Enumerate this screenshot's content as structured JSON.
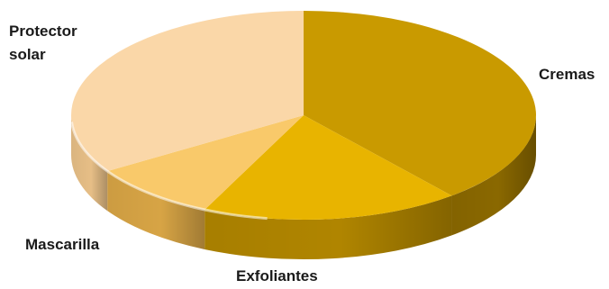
{
  "chart_data": {
    "type": "pie",
    "style": "3d",
    "title": "",
    "slices": [
      {
        "label": "Cremas",
        "value": 39,
        "top_color": "#C99A00",
        "side_color": "#8A6800"
      },
      {
        "label": "Exfoliantes",
        "value": 18,
        "top_color": "#E8B400",
        "side_color": "#B08500"
      },
      {
        "label": "Mascarilla",
        "value": 9,
        "top_color": "#F9C96A",
        "side_color": "#D7A445"
      },
      {
        "label": "Protector solar",
        "value": 34,
        "top_color": "#FAD7A8",
        "side_color": "#E6BE86"
      }
    ],
    "labels": {
      "Cremas": "Cremas",
      "Exfoliantes": "Exfoliantes",
      "Mascarilla": "Mascarilla",
      "Protector_line1": "Protector",
      "Protector_line2": "solar"
    },
    "legend": "none",
    "background": "#ffffff"
  }
}
